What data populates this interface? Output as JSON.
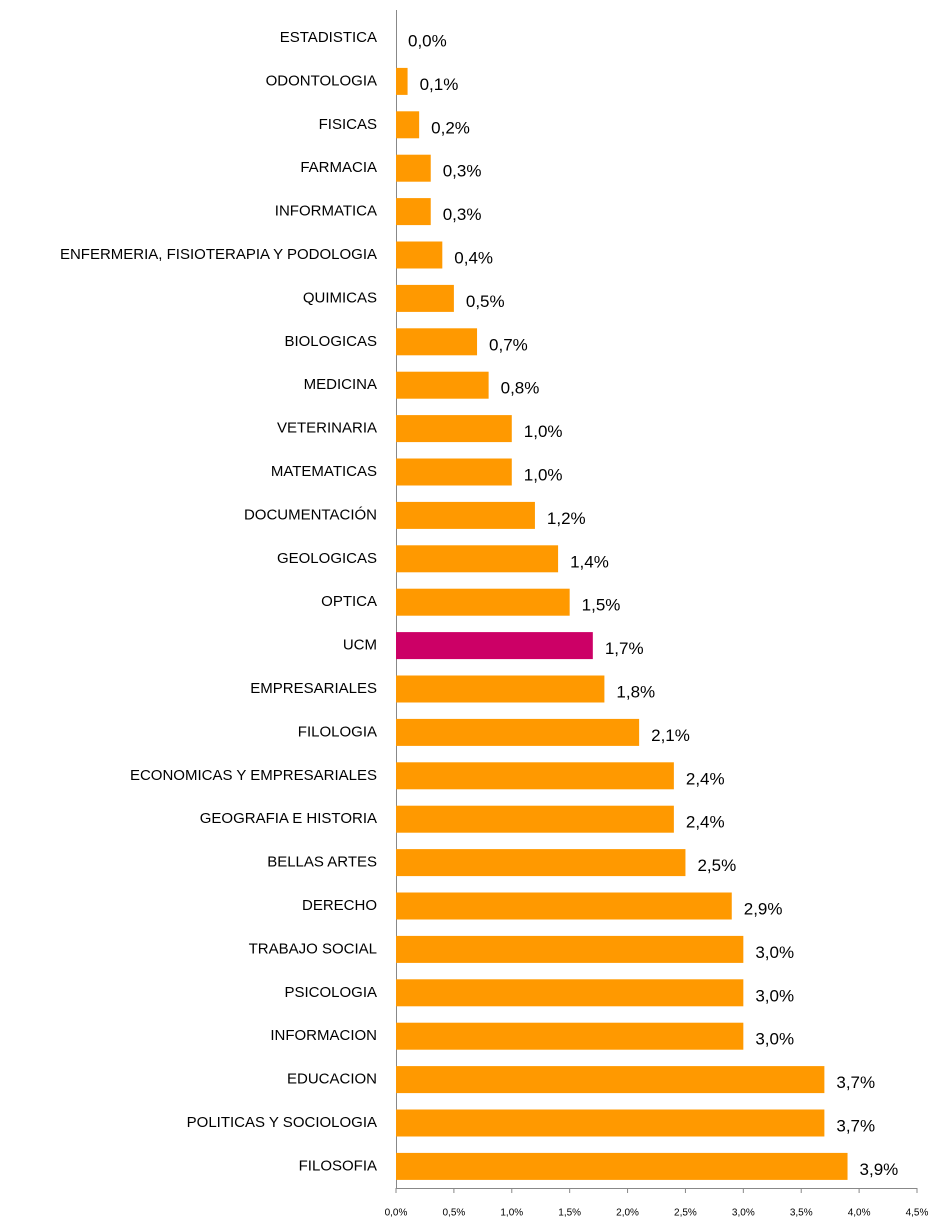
{
  "chart_data": {
    "type": "barh",
    "categories": [
      "ESTADISTICA",
      "ODONTOLOGIA",
      "FISICAS",
      "FARMACIA",
      "INFORMATICA",
      "ENFERMERIA, FISIOTERAPIA Y PODOLOGIA",
      "QUIMICAS",
      "BIOLOGICAS",
      "MEDICINA",
      "VETERINARIA",
      "MATEMATICAS",
      "DOCUMENTACIÓN",
      "GEOLOGICAS",
      "OPTICA",
      "UCM",
      "EMPRESARIALES",
      "FILOLOGIA",
      "ECONOMICAS Y EMPRESARIALES",
      "GEOGRAFIA E HISTORIA",
      "BELLAS ARTES",
      "DERECHO",
      "TRABAJO SOCIAL",
      "PSICOLOGIA",
      "INFORMACION",
      "EDUCACION",
      "POLITICAS Y SOCIOLOGIA",
      "FILOSOFIA"
    ],
    "values": [
      0.0,
      0.1,
      0.2,
      0.3,
      0.3,
      0.4,
      0.5,
      0.7,
      0.8,
      1.0,
      1.0,
      1.2,
      1.4,
      1.5,
      1.7,
      1.8,
      2.1,
      2.4,
      2.4,
      2.5,
      2.9,
      3.0,
      3.0,
      3.0,
      3.7,
      3.7,
      3.9
    ],
    "value_labels": [
      "0,0%",
      "0,1%",
      "0,2%",
      "0,3%",
      "0,3%",
      "0,4%",
      "0,5%",
      "0,7%",
      "0,8%",
      "1,0%",
      "1,0%",
      "1,2%",
      "1,4%",
      "1,5%",
      "1,7%",
      "1,8%",
      "2,1%",
      "2,4%",
      "2,4%",
      "2,5%",
      "2,9%",
      "3,0%",
      "3,0%",
      "3,0%",
      "3,7%",
      "3,7%",
      "3,9%"
    ],
    "colors": [
      "#ff9900",
      "#ff9900",
      "#ff9900",
      "#ff9900",
      "#ff9900",
      "#ff9900",
      "#ff9900",
      "#ff9900",
      "#ff9900",
      "#ff9900",
      "#ff9900",
      "#ff9900",
      "#ff9900",
      "#ff9900",
      "#cc0066",
      "#ff9900",
      "#ff9900",
      "#ff9900",
      "#ff9900",
      "#ff9900",
      "#ff9900",
      "#ff9900",
      "#ff9900",
      "#ff9900",
      "#ff9900",
      "#ff9900",
      "#ff9900"
    ],
    "xlim": [
      0,
      4.5
    ],
    "xticks": [
      {
        "value": 0,
        "label": "0,0%"
      },
      {
        "value": 0.5,
        "label": "0,5%"
      },
      {
        "value": 1,
        "label": "1,0%"
      },
      {
        "value": 1.5,
        "label": "1,5%"
      },
      {
        "value": 2,
        "label": "2,0%"
      },
      {
        "value": 2.5,
        "label": "2,5%"
      },
      {
        "value": 3,
        "label": "3,0%"
      },
      {
        "value": 3.5,
        "label": "3,5%"
      },
      {
        "value": 4,
        "label": "4,0%"
      },
      {
        "value": 4.5,
        "label": "4,5%"
      }
    ]
  }
}
